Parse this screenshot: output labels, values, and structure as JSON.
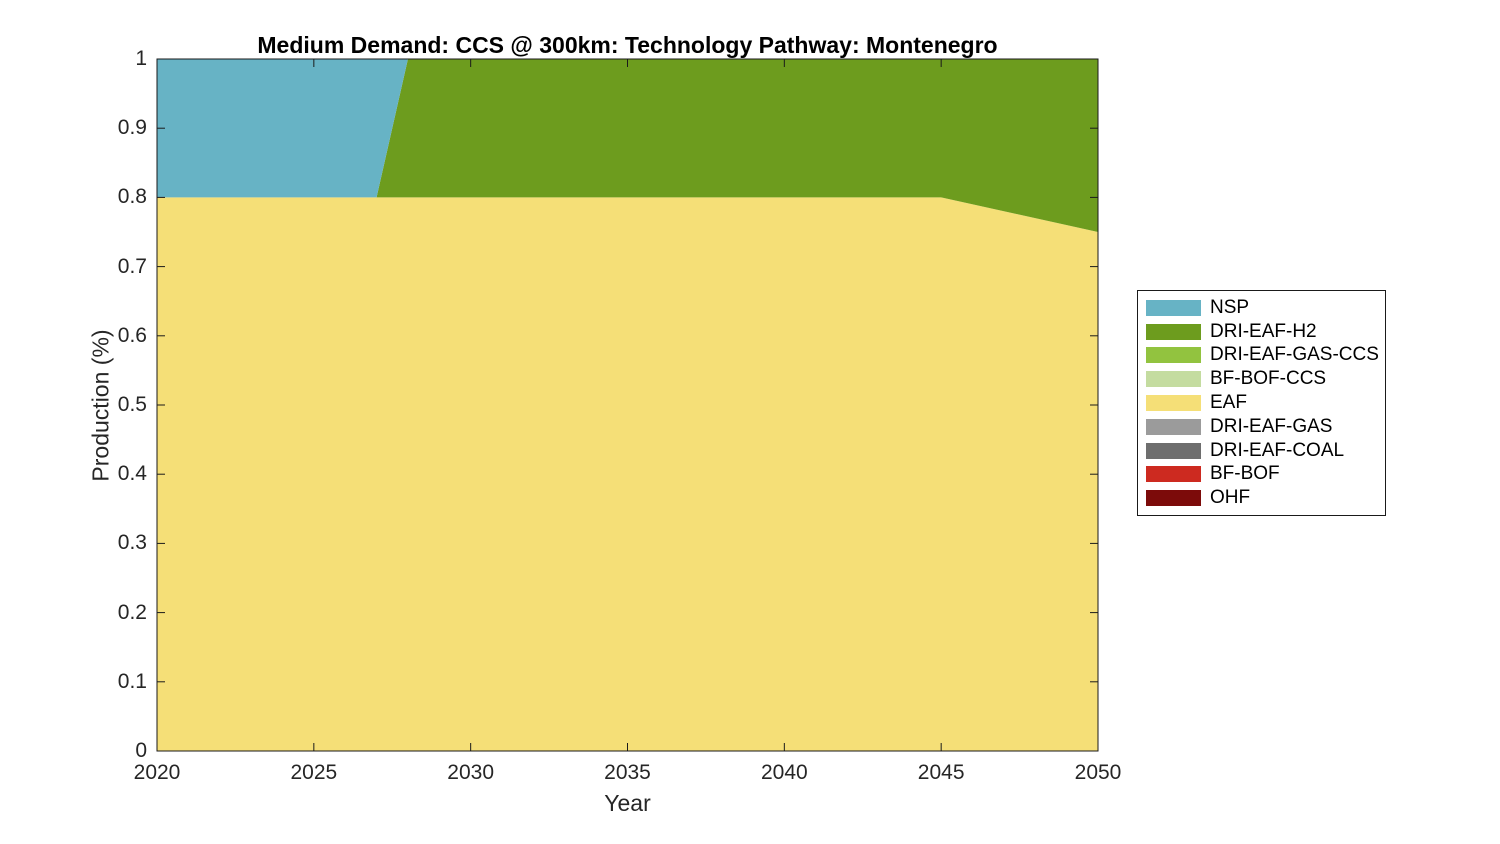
{
  "figure": {
    "background": "#ffffff"
  },
  "chart_data": {
    "type": "area",
    "stacked": true,
    "stack_order": "bottom-to-top",
    "title": "Medium Demand: CCS @ 300km: Technology Pathway: Montenegro",
    "xlabel": "Year",
    "ylabel": "Production (%)",
    "xlim": [
      2020,
      2050
    ],
    "ylim": [
      0,
      1
    ],
    "grid": false,
    "legend_position": "right",
    "tick_direction": "in",
    "x_tick_labels": [
      "2020",
      "2025",
      "2030",
      "2035",
      "2040",
      "2045",
      "2050"
    ],
    "y_tick_labels": [
      "0",
      "0.1",
      "0.2",
      "0.3",
      "0.4",
      "0.5",
      "0.6",
      "0.7",
      "0.8",
      "0.9",
      "1"
    ],
    "x": [
      2020,
      2025,
      2027,
      2028,
      2030,
      2035,
      2040,
      2045,
      2050
    ],
    "series": [
      {
        "name": "OHF",
        "color": "#7c0b0a",
        "values": [
          0,
          0,
          0,
          0,
          0,
          0,
          0,
          0,
          0
        ]
      },
      {
        "name": "BF-BOF",
        "color": "#cd2a20",
        "values": [
          0,
          0,
          0,
          0,
          0,
          0,
          0,
          0,
          0
        ]
      },
      {
        "name": "DRI-EAF-COAL",
        "color": "#6e6e6e",
        "values": [
          0,
          0,
          0,
          0,
          0,
          0,
          0,
          0,
          0
        ]
      },
      {
        "name": "DRI-EAF-GAS",
        "color": "#9b9b9b",
        "values": [
          0,
          0,
          0,
          0,
          0,
          0,
          0,
          0,
          0
        ]
      },
      {
        "name": "EAF",
        "color": "#f5df77",
        "values": [
          0.8,
          0.8,
          0.8,
          0.8,
          0.8,
          0.8,
          0.8,
          0.8,
          0.75
        ]
      },
      {
        "name": "BF-BOF-CCS",
        "color": "#c4dca0",
        "values": [
          0,
          0,
          0,
          0,
          0,
          0,
          0,
          0,
          0
        ]
      },
      {
        "name": "DRI-EAF-GAS-CCS",
        "color": "#92c33f",
        "values": [
          0,
          0,
          0,
          0,
          0,
          0,
          0,
          0,
          0
        ]
      },
      {
        "name": "DRI-EAF-H2",
        "color": "#6d9c1e",
        "values": [
          0,
          0,
          0,
          0.2,
          0.2,
          0.2,
          0.2,
          0.2,
          0.25
        ]
      },
      {
        "name": "NSP",
        "color": "#67b3c5",
        "values": [
          0.2,
          0.2,
          0.2,
          0,
          0,
          0,
          0,
          0,
          0
        ]
      }
    ]
  },
  "legend": {
    "items": [
      {
        "label": "NSP",
        "color": "#67b3c5"
      },
      {
        "label": "DRI-EAF-H2",
        "color": "#6d9c1e"
      },
      {
        "label": "DRI-EAF-GAS-CCS",
        "color": "#92c33f"
      },
      {
        "label": "BF-BOF-CCS",
        "color": "#c4dca0"
      },
      {
        "label": "EAF",
        "color": "#f5df77"
      },
      {
        "label": "DRI-EAF-GAS",
        "color": "#9b9b9b"
      },
      {
        "label": "DRI-EAF-COAL",
        "color": "#6e6e6e"
      },
      {
        "label": "BF-BOF",
        "color": "#cd2a20"
      },
      {
        "label": "OHF",
        "color": "#7c0b0a"
      }
    ]
  }
}
